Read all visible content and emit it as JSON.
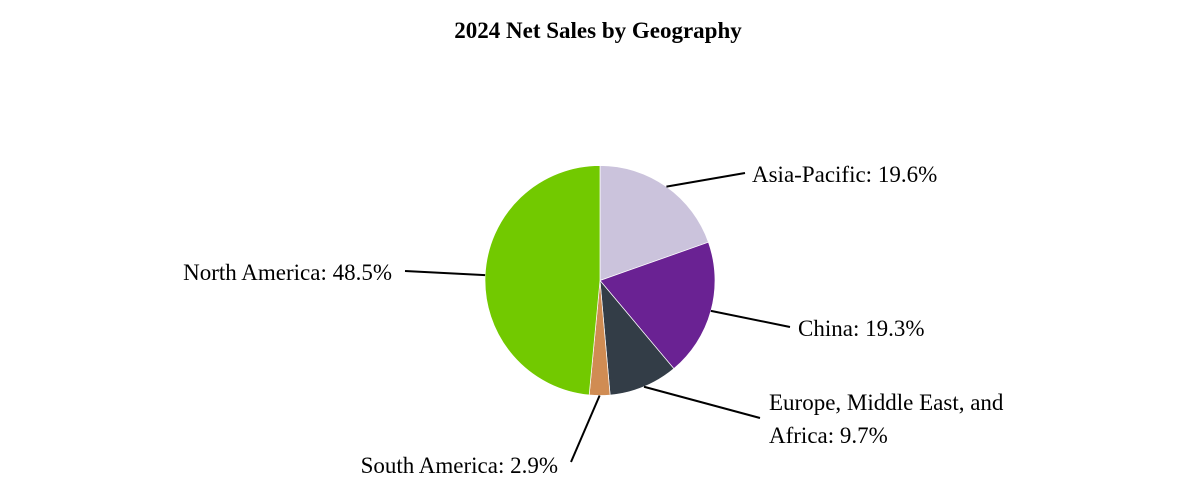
{
  "chart_data": {
    "type": "pie",
    "title": "2024 Net Sales by Geography",
    "start_angle": "top",
    "direction": "clockwise",
    "slices": [
      {
        "label": "Asia-Pacific",
        "value": 19.6,
        "text": "Asia-Pacific: 19.6%",
        "color": "#cbc3dc"
      },
      {
        "label": "China",
        "value": 19.3,
        "text": "China: 19.3%",
        "color": "#6a2293"
      },
      {
        "label": "Europe, Middle East, and Africa",
        "value": 9.7,
        "text_lines": [
          "Europe, Middle East, and",
          "Africa: 9.7%"
        ],
        "color": "#333d47"
      },
      {
        "label": "South America",
        "value": 2.9,
        "text": "South America: 2.9%",
        "color": "#d08c53"
      },
      {
        "label": "North America",
        "value": 48.5,
        "text": "North America: 48.5%",
        "color": "#72c900"
      }
    ]
  }
}
